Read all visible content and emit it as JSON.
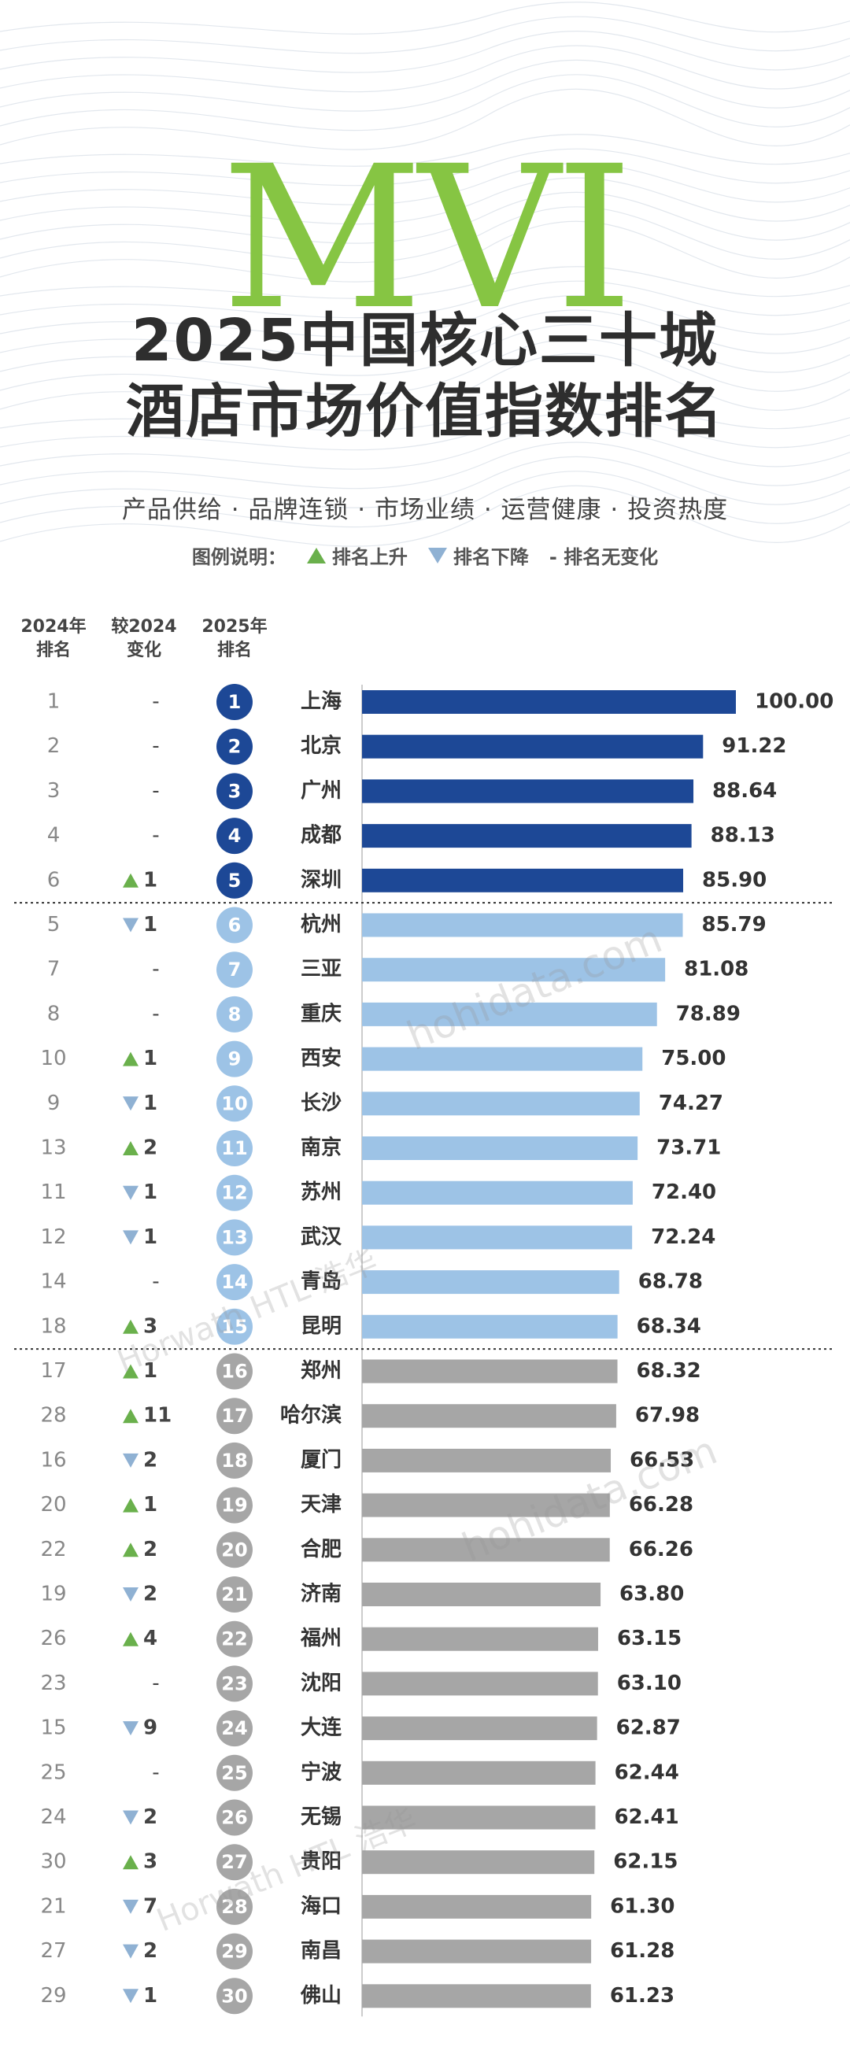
{
  "header": {
    "logo_text": "MVI",
    "title_line1": "2025中国核心三十城",
    "title_line2": "酒店市场价值指数排名",
    "subtitle": "产品供给 · 品牌连锁 · 市场业绩 · 运营健康 · 投资热度",
    "legend_label": "图例说明：",
    "legend_up": "排名上升",
    "legend_down": "排名下降",
    "legend_same": "- 排名无变化"
  },
  "columns": {
    "rank2024_l1": "2024年",
    "rank2024_l2": "排名",
    "change_l1": "较2024",
    "change_l2": "变化",
    "rank2025_l1": "2025年",
    "rank2025_l2": "排名"
  },
  "watermarks": {
    "site": "hohidata.com",
    "brand": "Horwath HTL 浩华"
  },
  "colors": {
    "tier1": "#1d4896",
    "tier2": "#9dc3e6",
    "tier3": "#a6a6a6",
    "up": "#6ab04c",
    "down": "#8fb1d3",
    "accent": "#86c543"
  },
  "chart_data": {
    "type": "bar",
    "orientation": "horizontal",
    "title": "2025中国核心三十城酒店市场价值指数排名",
    "categories": [
      "上海",
      "北京",
      "广州",
      "成都",
      "深圳",
      "杭州",
      "三亚",
      "重庆",
      "西安",
      "长沙",
      "南京",
      "苏州",
      "武汉",
      "青岛",
      "昆明",
      "郑州",
      "哈尔滨",
      "厦门",
      "天津",
      "合肥",
      "济南",
      "福州",
      "沈阳",
      "大连",
      "宁波",
      "无锡",
      "贵阳",
      "海口",
      "南昌",
      "佛山"
    ],
    "values": [
      100.0,
      91.22,
      88.64,
      88.13,
      85.9,
      85.79,
      81.08,
      78.89,
      75.0,
      74.27,
      73.71,
      72.4,
      72.24,
      68.78,
      68.34,
      68.32,
      67.98,
      66.53,
      66.28,
      66.26,
      63.8,
      63.15,
      63.1,
      62.87,
      62.44,
      62.41,
      62.15,
      61.3,
      61.28,
      61.23
    ],
    "value_labels": [
      "100.00",
      "91.22",
      "88.64",
      "88.13",
      "85.90",
      "85.79",
      "81.08",
      "78.89",
      "75.00",
      "74.27",
      "73.71",
      "72.40",
      "72.24",
      "68.78",
      "68.34",
      "68.32",
      "67.98",
      "66.53",
      "66.28",
      "66.26",
      "63.80",
      "63.15",
      "63.10",
      "62.87",
      "62.44",
      "62.41",
      "62.15",
      "61.30",
      "61.28",
      "61.23"
    ],
    "rank_2025": [
      1,
      2,
      3,
      4,
      5,
      6,
      7,
      8,
      9,
      10,
      11,
      12,
      13,
      14,
      15,
      16,
      17,
      18,
      19,
      20,
      21,
      22,
      23,
      24,
      25,
      26,
      27,
      28,
      29,
      30
    ],
    "rank_2024": [
      1,
      2,
      3,
      4,
      6,
      5,
      7,
      8,
      10,
      9,
      13,
      11,
      12,
      14,
      18,
      17,
      28,
      16,
      20,
      22,
      19,
      26,
      23,
      15,
      25,
      24,
      30,
      21,
      27,
      29
    ],
    "change": [
      "-",
      "-",
      "-",
      "-",
      "▲1",
      "▼1",
      "-",
      "-",
      "▲1",
      "▼1",
      "▲2",
      "▼1",
      "▼1",
      "-",
      "▲3",
      "▲1",
      "▲11",
      "▼2",
      "▲1",
      "▲2",
      "▼2",
      "▲4",
      "-",
      "▼9",
      "-",
      "▼2",
      "▲3",
      "▼7",
      "▼2",
      "▼1"
    ],
    "tier_ends": [
      5,
      15,
      30
    ],
    "xlim": [
      0,
      100
    ]
  }
}
